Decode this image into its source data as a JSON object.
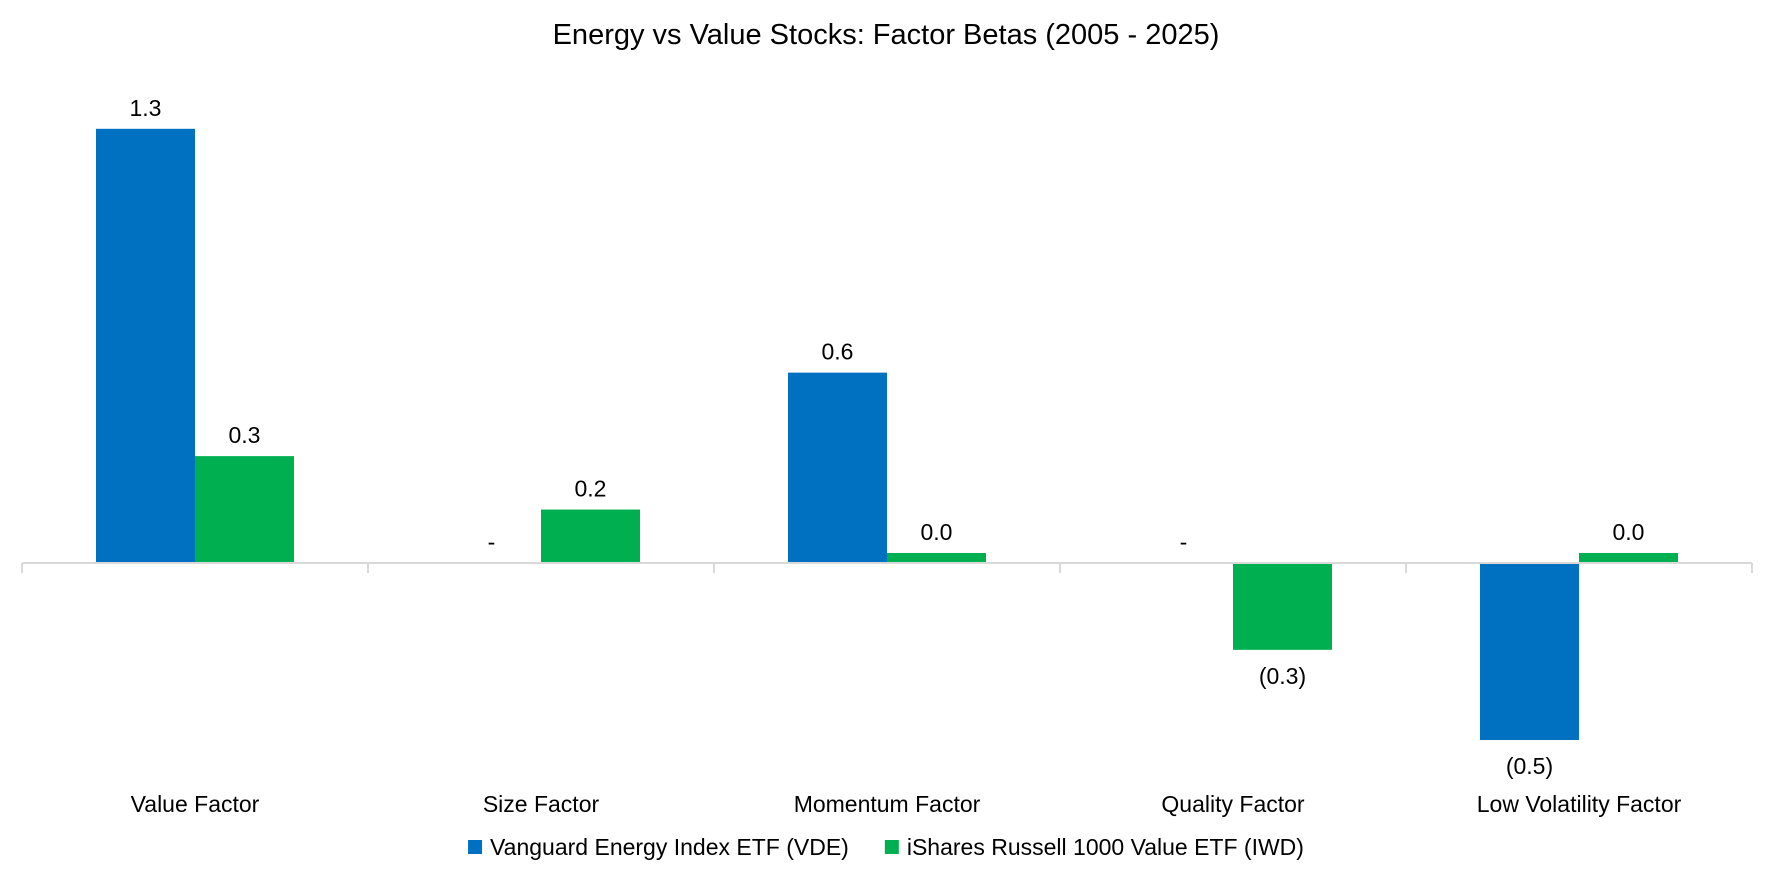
{
  "chart_data": {
    "type": "bar",
    "title": "Energy vs Value Stocks: Factor Betas (2005 - 2025)",
    "xlabel": "",
    "ylabel": "",
    "categories": [
      "Value Factor",
      "Size Factor",
      "Momentum Factor",
      "Quality Factor",
      "Low Volatility Factor"
    ],
    "series": [
      {
        "name": "Vanguard Energy Index ETF (VDE)",
        "color": "#0070C0",
        "values": [
          1.3,
          0.0,
          0.57,
          0.0,
          -0.53
        ],
        "labels": [
          "1.3",
          "-",
          "0.6",
          "-",
          "(0.5)"
        ]
      },
      {
        "name": "iShares Russell 1000 Value ETF (IWD)",
        "color": "#00B050",
        "values": [
          0.32,
          0.16,
          0.03,
          -0.26,
          0.03
        ],
        "labels": [
          "0.3",
          "0.2",
          "0.0",
          "(0.3)",
          "0.0"
        ]
      }
    ],
    "ylim": [
      -0.55,
      1.3
    ],
    "grid": false,
    "legend": "bottom",
    "axis_color": "#D9D9D9"
  }
}
